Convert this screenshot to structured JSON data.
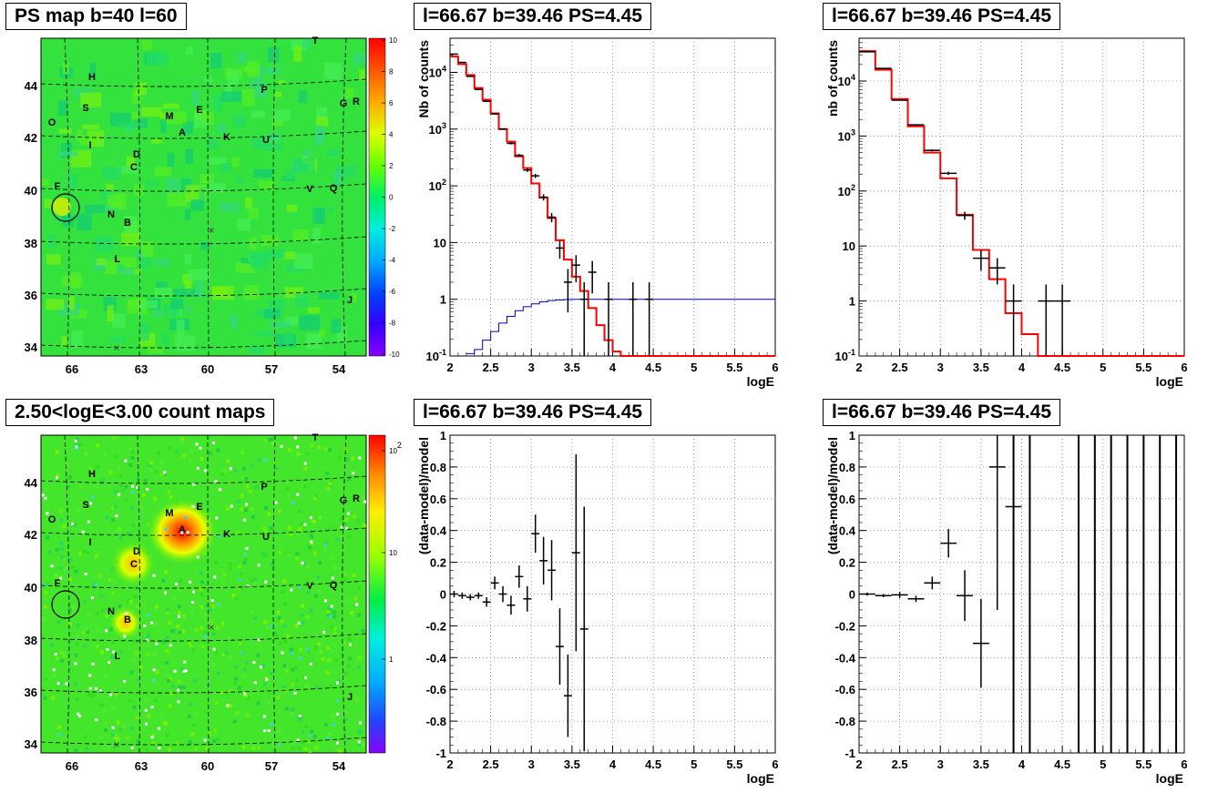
{
  "titles": {
    "map_top": "PS map b=40 l=60",
    "spec_top": "l=66.67 b=39.46 PS=4.45",
    "spec_top_right": "l=66.67 b=39.46 PS=4.45",
    "map_bottom": "2.50<logE<3.00 count maps",
    "resid_bottom": "l=66.67 b=39.46 PS=4.45",
    "resid_bottom_right": "l=66.67 b=39.46 PS=4.45"
  },
  "colors": {
    "data": "#000000",
    "model": "#ff0000",
    "acceptance": "#0000cc",
    "grid": "#888888"
  },
  "chart_data": [
    {
      "id": "ps_map",
      "type": "heatmap",
      "title": "PS map b=40 l=60",
      "x_ticks": [
        "66",
        "63",
        "60",
        "57",
        "54"
      ],
      "y_ticks": [
        "34",
        "36",
        "38",
        "40",
        "42",
        "44"
      ],
      "colorbar_ticks": [
        "10",
        "8",
        "6",
        "4",
        "2",
        "0",
        "-2",
        "-4",
        "-6",
        "-8",
        "-10"
      ],
      "zlim": [
        -10,
        10
      ],
      "sources": [
        "T",
        "H",
        "P",
        "S",
        "M",
        "E",
        "G",
        "R",
        "O",
        "A",
        "K",
        "U",
        "I",
        "D",
        "C",
        "F",
        "V",
        "Q",
        "N",
        "B",
        "L",
        "J"
      ],
      "circle_around": "F"
    },
    {
      "id": "spectrum_left",
      "type": "line",
      "title": "l=66.67 b=39.46 PS=4.45",
      "xlabel": "logE",
      "ylabel": "Nb of counts",
      "xlim": [
        2,
        6
      ],
      "ylim": [
        0.1,
        40000
      ],
      "ylog": true,
      "x_ticks": [
        "2",
        "2.5",
        "3",
        "3.5",
        "4",
        "4.5",
        "5",
        "5.5",
        "6"
      ],
      "y_ticks": [
        "10^-1",
        "1",
        "10",
        "10^2",
        "10^3",
        "10^4"
      ],
      "grid": true,
      "data_points": [
        [
          2.05,
          21000
        ],
        [
          2.15,
          15000
        ],
        [
          2.25,
          8500
        ],
        [
          2.35,
          5000
        ],
        [
          2.45,
          3100
        ],
        [
          2.55,
          1850
        ],
        [
          2.65,
          1000
        ],
        [
          2.75,
          560
        ],
        [
          2.85,
          345
        ],
        [
          2.95,
          190
        ],
        [
          3.05,
          150
        ],
        [
          3.15,
          63
        ],
        [
          3.25,
          28
        ],
        [
          3.35,
          8
        ],
        [
          3.45,
          2
        ],
        [
          3.55,
          4
        ],
        [
          3.65,
          1
        ],
        [
          3.75,
          3
        ],
        [
          3.95,
          1
        ],
        [
          4.25,
          1
        ],
        [
          4.45,
          1
        ]
      ],
      "model_steps": [
        [
          2.0,
          19000
        ],
        [
          2.1,
          14000
        ],
        [
          2.2,
          9000
        ],
        [
          2.3,
          5300
        ],
        [
          2.4,
          3300
        ],
        [
          2.5,
          1900
        ],
        [
          2.6,
          1000
        ],
        [
          2.7,
          600
        ],
        [
          2.8,
          330
        ],
        [
          2.9,
          205
        ],
        [
          3.0,
          110
        ],
        [
          3.1,
          62
        ],
        [
          3.2,
          27
        ],
        [
          3.3,
          11
        ],
        [
          3.4,
          5
        ],
        [
          3.5,
          2.5
        ],
        [
          3.6,
          1.4
        ],
        [
          3.7,
          0.7
        ],
        [
          3.8,
          0.35
        ],
        [
          3.9,
          0.19
        ],
        [
          4.0,
          0.12
        ],
        [
          4.1,
          0.1
        ],
        [
          6.0,
          0.1
        ]
      ],
      "acceptance_steps": [
        [
          2.2,
          0.11
        ],
        [
          2.3,
          0.13
        ],
        [
          2.4,
          0.19
        ],
        [
          2.5,
          0.27
        ],
        [
          2.6,
          0.38
        ],
        [
          2.7,
          0.5
        ],
        [
          2.8,
          0.63
        ],
        [
          2.9,
          0.74
        ],
        [
          3.0,
          0.83
        ],
        [
          3.1,
          0.9
        ],
        [
          3.2,
          0.95
        ],
        [
          3.3,
          0.97
        ],
        [
          3.4,
          0.99
        ],
        [
          3.5,
          1.0
        ],
        [
          6.0,
          1.0
        ]
      ]
    },
    {
      "id": "spectrum_right",
      "type": "line",
      "title": "l=66.67 b=39.46 PS=4.45",
      "xlabel": "logE",
      "ylabel": "nb of counts",
      "xlim": [
        2,
        6
      ],
      "ylim": [
        0.1,
        60000
      ],
      "ylog": true,
      "x_ticks": [
        "2",
        "2.5",
        "3",
        "3.5",
        "4",
        "4.5",
        "5",
        "5.5",
        "6"
      ],
      "y_ticks": [
        "10^-1",
        "1",
        "10",
        "10^2",
        "10^3",
        "10^4"
      ],
      "grid": true,
      "data_points": [
        [
          2.1,
          34000
        ],
        [
          2.3,
          17000
        ],
        [
          2.5,
          4500
        ],
        [
          2.7,
          1600
        ],
        [
          2.9,
          550
        ],
        [
          3.1,
          210
        ],
        [
          3.3,
          36
        ],
        [
          3.5,
          6
        ],
        [
          3.7,
          4
        ],
        [
          3.9,
          1
        ],
        [
          4.3,
          1
        ],
        [
          4.5,
          1
        ]
      ],
      "model_steps": [
        [
          2.0,
          35000
        ],
        [
          2.2,
          16000
        ],
        [
          2.4,
          4700
        ],
        [
          2.6,
          1500
        ],
        [
          2.8,
          500
        ],
        [
          3.0,
          170
        ],
        [
          3.2,
          37
        ],
        [
          3.4,
          8.5
        ],
        [
          3.6,
          2.5
        ],
        [
          3.8,
          0.6
        ],
        [
          4.0,
          0.25
        ],
        [
          4.2,
          0.1
        ],
        [
          6.0,
          0.1
        ]
      ]
    },
    {
      "id": "residual_left",
      "type": "scatter",
      "title": "l=66.67 b=39.46 PS=4.45",
      "xlabel": "logE",
      "ylabel": "(data-model)/model",
      "xlim": [
        2,
        6
      ],
      "ylim": [
        -1,
        1
      ],
      "x_ticks": [
        "2",
        "2.5",
        "3",
        "3.5",
        "4",
        "4.5",
        "5",
        "5.5",
        "6"
      ],
      "y_ticks": [
        "-1",
        "-0.8",
        "-0.6",
        "-0.4",
        "-0.2",
        "0",
        "0.2",
        "0.4",
        "0.6",
        "0.8",
        "1"
      ],
      "grid": true,
      "points": [
        [
          2.05,
          0.0,
          0.02
        ],
        [
          2.15,
          -0.01,
          0.02
        ],
        [
          2.25,
          -0.02,
          0.02
        ],
        [
          2.35,
          -0.01,
          0.02
        ],
        [
          2.45,
          -0.05,
          0.03
        ],
        [
          2.55,
          0.07,
          0.04
        ],
        [
          2.65,
          0.0,
          0.05
        ],
        [
          2.75,
          -0.07,
          0.06
        ],
        [
          2.85,
          0.11,
          0.07
        ],
        [
          2.95,
          -0.03,
          0.08
        ],
        [
          3.05,
          0.38,
          0.12
        ],
        [
          3.15,
          0.21,
          0.15
        ],
        [
          3.25,
          0.15,
          0.19
        ],
        [
          3.35,
          -0.33,
          0.24
        ],
        [
          3.45,
          -0.64,
          0.26
        ],
        [
          3.55,
          0.26,
          0.62
        ],
        [
          3.65,
          -0.22,
          0.77
        ]
      ]
    },
    {
      "id": "residual_right",
      "type": "scatter",
      "title": "l=66.67 b=39.46 PS=4.45",
      "xlabel": "logE",
      "ylabel": "(data-model)/model",
      "xlim": [
        2,
        6
      ],
      "ylim": [
        -1,
        1
      ],
      "x_ticks": [
        "2",
        "2.5",
        "3",
        "3.5",
        "4",
        "4.5",
        "5",
        "5.5",
        "6"
      ],
      "y_ticks": [
        "-1",
        "-0.8",
        "-0.6",
        "-0.4",
        "-0.2",
        "0",
        "0.2",
        "0.4",
        "0.6",
        "0.8",
        "1"
      ],
      "grid": true,
      "points": [
        [
          2.1,
          0.0,
          0.01
        ],
        [
          2.3,
          -0.01,
          0.01
        ],
        [
          2.5,
          -0.005,
          0.02
        ],
        [
          2.7,
          -0.03,
          0.02
        ],
        [
          2.9,
          0.07,
          0.04
        ],
        [
          3.1,
          0.32,
          0.09
        ],
        [
          3.3,
          -0.01,
          0.16
        ],
        [
          3.5,
          -0.31,
          0.28
        ],
        [
          3.7,
          0.8,
          0.9
        ],
        [
          3.9,
          0.55,
          1.6
        ]
      ],
      "full_range_bars": [
        3.9,
        4.1,
        4.7,
        4.9,
        5.1,
        5.3,
        5.5,
        5.7,
        5.9
      ]
    },
    {
      "id": "count_map",
      "type": "heatmap",
      "title": "2.50<logE<3.00 count maps",
      "x_ticks": [
        "66",
        "63",
        "60",
        "57",
        "54"
      ],
      "y_ticks": [
        "34",
        "36",
        "38",
        "40",
        "42",
        "44"
      ],
      "colorbar_ticks": [
        "10^2",
        "10",
        "1"
      ],
      "zlog": true,
      "sources": [
        "T",
        "H",
        "P",
        "S",
        "M",
        "E",
        "G",
        "R",
        "O",
        "A",
        "K",
        "U",
        "I",
        "D",
        "C",
        "F",
        "V",
        "Q",
        "N",
        "B",
        "L",
        "J"
      ],
      "circle_around": "F"
    }
  ]
}
